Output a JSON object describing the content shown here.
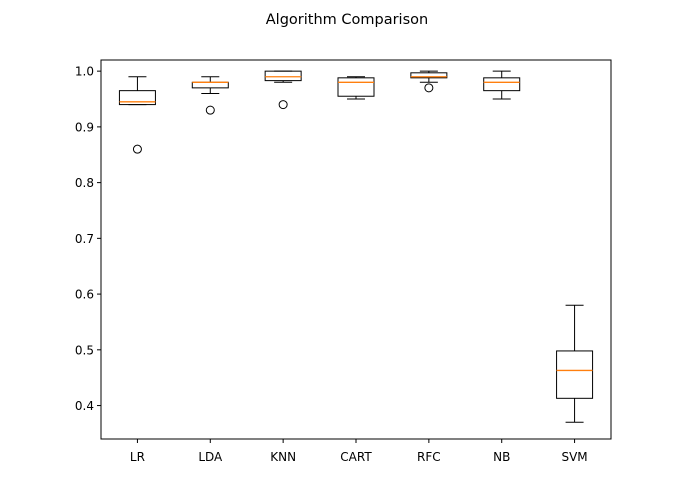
{
  "chart_data": {
    "type": "boxplot",
    "title": "Algorithm Comparison",
    "xlabel": "",
    "ylabel": "",
    "ylim": [
      0.34,
      1.02
    ],
    "yticks": [
      0.4,
      0.5,
      0.6,
      0.7,
      0.8,
      0.9,
      1.0
    ],
    "ytick_labels": [
      "0.4",
      "0.5",
      "0.6",
      "0.7",
      "0.8",
      "0.9",
      "1.0"
    ],
    "categories": [
      "LR",
      "LDA",
      "KNN",
      "CART",
      "RFC",
      "NB",
      "SVM"
    ],
    "boxes": [
      {
        "name": "LR",
        "whislo": 0.94,
        "q1": 0.94,
        "med": 0.945,
        "q3": 0.965,
        "whishi": 0.99,
        "fliers": [
          0.86
        ]
      },
      {
        "name": "LDA",
        "whislo": 0.96,
        "q1": 0.97,
        "med": 0.98,
        "q3": 0.98,
        "whishi": 0.99,
        "fliers": [
          0.93
        ]
      },
      {
        "name": "KNN",
        "whislo": 0.98,
        "q1": 0.983,
        "med": 0.99,
        "q3": 1.0,
        "whishi": 1.0,
        "fliers": [
          0.94
        ]
      },
      {
        "name": "CART",
        "whislo": 0.95,
        "q1": 0.955,
        "med": 0.98,
        "q3": 0.988,
        "whishi": 0.99,
        "fliers": []
      },
      {
        "name": "RFC",
        "whislo": 0.98,
        "q1": 0.988,
        "med": 0.99,
        "q3": 0.997,
        "whishi": 1.0,
        "fliers": [
          0.97
        ]
      },
      {
        "name": "NB",
        "whislo": 0.95,
        "q1": 0.965,
        "med": 0.98,
        "q3": 0.988,
        "whishi": 1.0,
        "fliers": []
      },
      {
        "name": "SVM",
        "whislo": 0.37,
        "q1": 0.413,
        "med": 0.463,
        "q3": 0.498,
        "whishi": 0.58,
        "fliers": []
      }
    ],
    "median_color": "#ff7f0e",
    "box_color": "#000000"
  }
}
